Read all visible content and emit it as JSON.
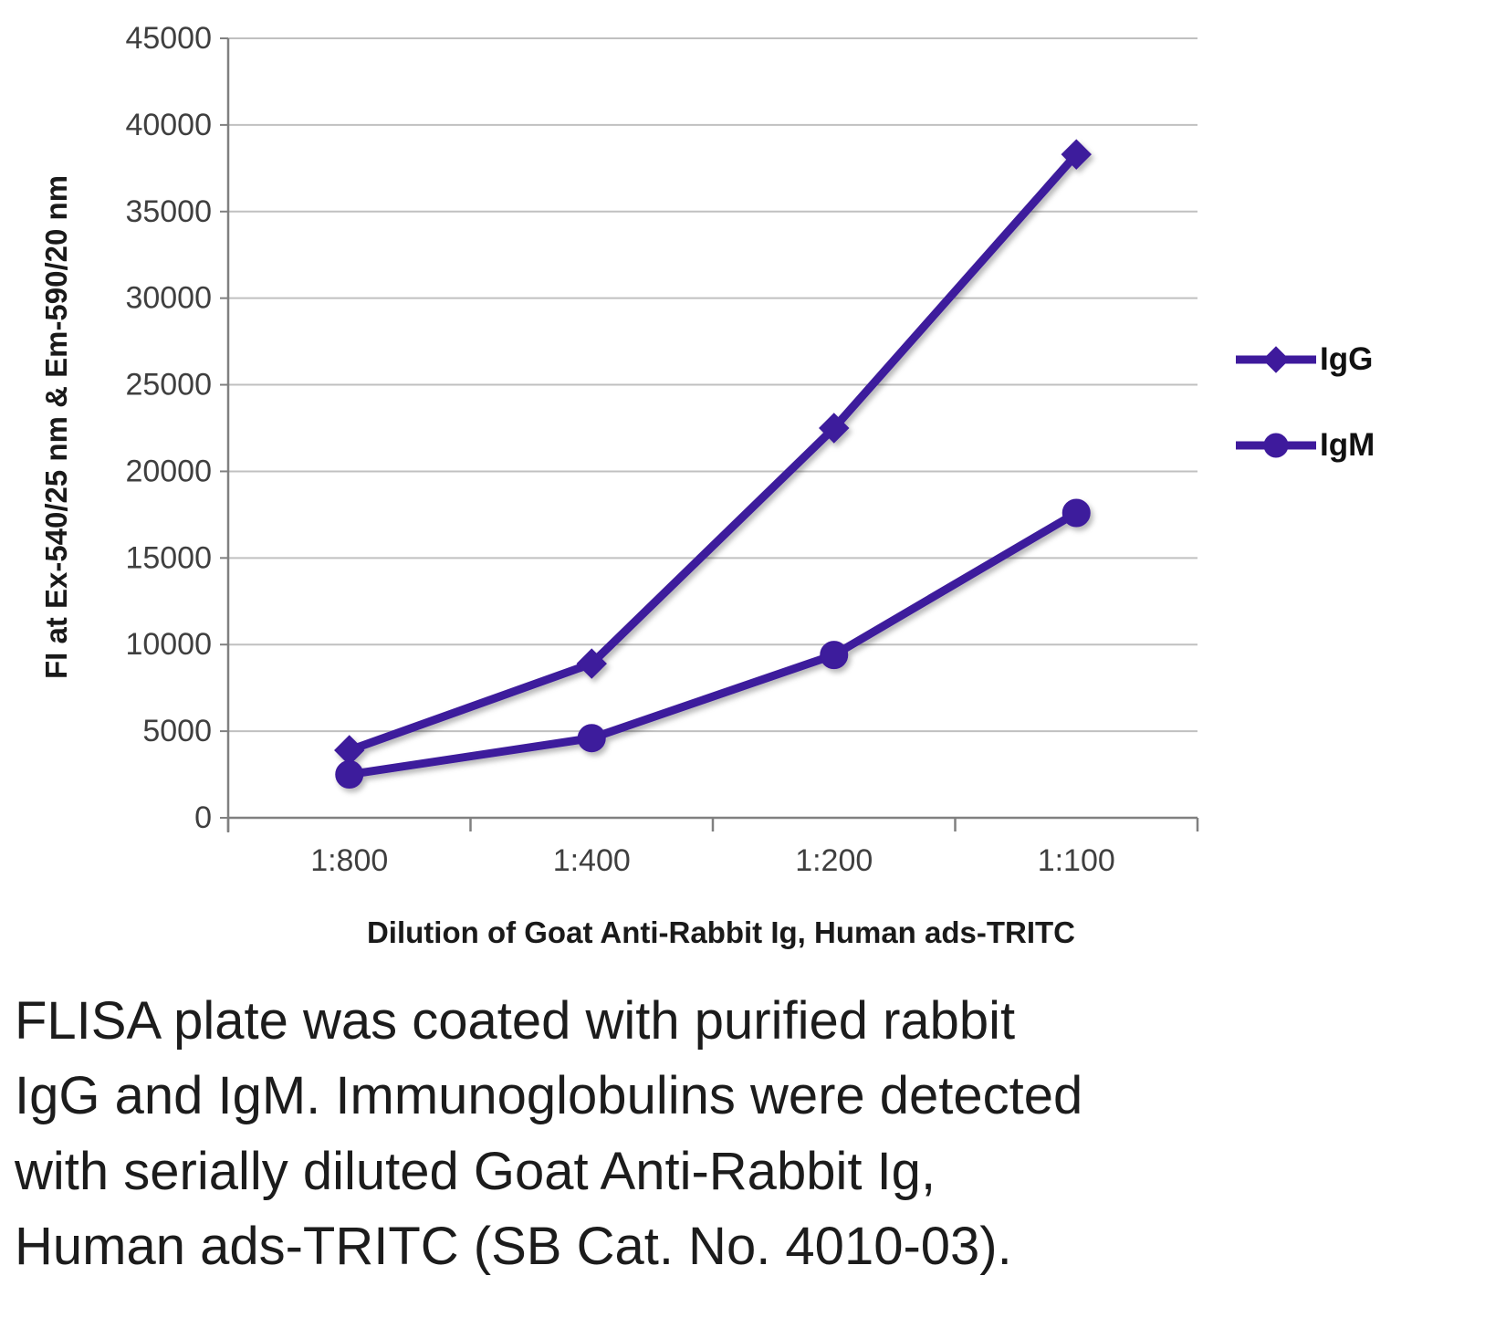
{
  "chart_data": {
    "type": "line",
    "title": "",
    "categories": [
      "1:800",
      "1:400",
      "1:200",
      "1:100"
    ],
    "series": [
      {
        "name": "IgG",
        "marker": "diamond",
        "color": "#3E1A9C",
        "values": [
          3900,
          8900,
          22500,
          38300
        ]
      },
      {
        "name": "IgM",
        "marker": "circle",
        "color": "#3E1A9C",
        "values": [
          2500,
          4600,
          9400,
          17600
        ]
      }
    ],
    "xlabel": "Dilution of Goat Anti-Rabbit Ig, Human ads-TRITC",
    "ylabel": "FI at Ex-540/25 nm & Em-590/20 nm",
    "ylim": [
      0,
      45000
    ],
    "ytick_step": 5000,
    "grid": true,
    "legend_position": "right"
  },
  "caption": {
    "text": "FLISA plate was coated with purified rabbit\nIgG and IgM.  Immunoglobulins were detected\nwith serially diluted Goat Anti-Rabbit Ig,\nHuman ads-TRITC (SB Cat. No. 4010-03)."
  },
  "colors": {
    "gridline": "#c0c0c0",
    "axis": "#808080",
    "tick_label": "#3f3f3f"
  }
}
